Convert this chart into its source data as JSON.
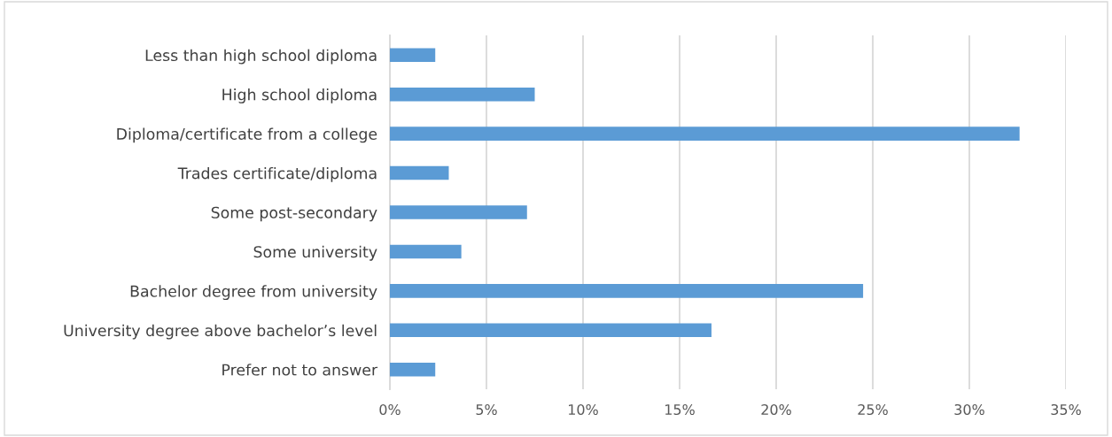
{
  "chart_data": {
    "type": "bar",
    "orientation": "horizontal",
    "categories": [
      "Less than high school diploma",
      "High school diploma",
      "Diploma/certificate from a college",
      "Trades certificate/diploma",
      "Some post-secondary",
      "Some university",
      "Bachelor degree from university",
      "University degree above bachelor’s level",
      "Prefer not to answer"
    ],
    "values": [
      2.35,
      7.5,
      32.6,
      3.05,
      7.1,
      3.7,
      24.5,
      16.65,
      2.35
    ],
    "color": "#5b9bd5",
    "xlim": [
      0,
      35
    ],
    "xticks": [
      {
        "value": 0,
        "label": "0%"
      },
      {
        "value": 5,
        "label": "5%"
      },
      {
        "value": 10,
        "label": "10%"
      },
      {
        "value": 15,
        "label": "15%"
      },
      {
        "value": 20,
        "label": "20%"
      },
      {
        "value": 25,
        "label": "25%"
      },
      {
        "value": 30,
        "label": "30%"
      },
      {
        "value": 35,
        "label": "35%"
      }
    ],
    "grid": "x"
  }
}
